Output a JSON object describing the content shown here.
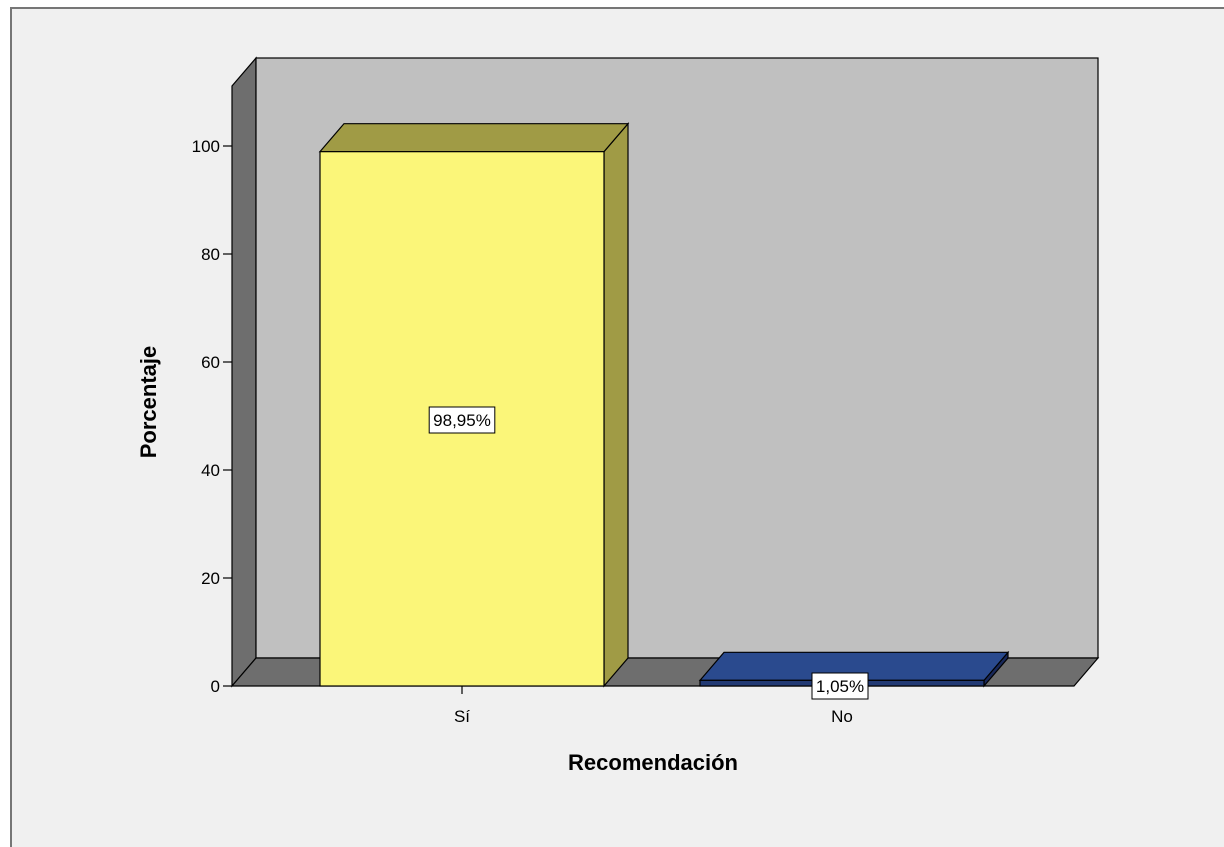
{
  "chart_data": {
    "type": "bar",
    "categories": [
      "Sí",
      "No"
    ],
    "values": [
      98.95,
      1.05
    ],
    "data_labels": [
      "98,95%",
      "1,05%"
    ],
    "xlabel": "Recomendación",
    "ylabel": "Porcentaje",
    "ylim": [
      0,
      100
    ],
    "yticks": [
      0,
      20,
      40,
      60,
      80,
      100
    ],
    "ytick_labels": [
      "0",
      "20",
      "40",
      "60",
      "80",
      "100"
    ],
    "style": "3d",
    "colors": {
      "bar_front": [
        "#fbf679",
        "#223a74"
      ],
      "bar_side": [
        "#a09b45",
        "#18285a"
      ],
      "bar_top": [
        "#a09b45",
        "#2a4a8e"
      ],
      "back_wall": "#c0c0c0",
      "side_wall": "#6e6e6e",
      "floor": "#6e6e6e",
      "frame_background": "#f0f0f0"
    }
  }
}
